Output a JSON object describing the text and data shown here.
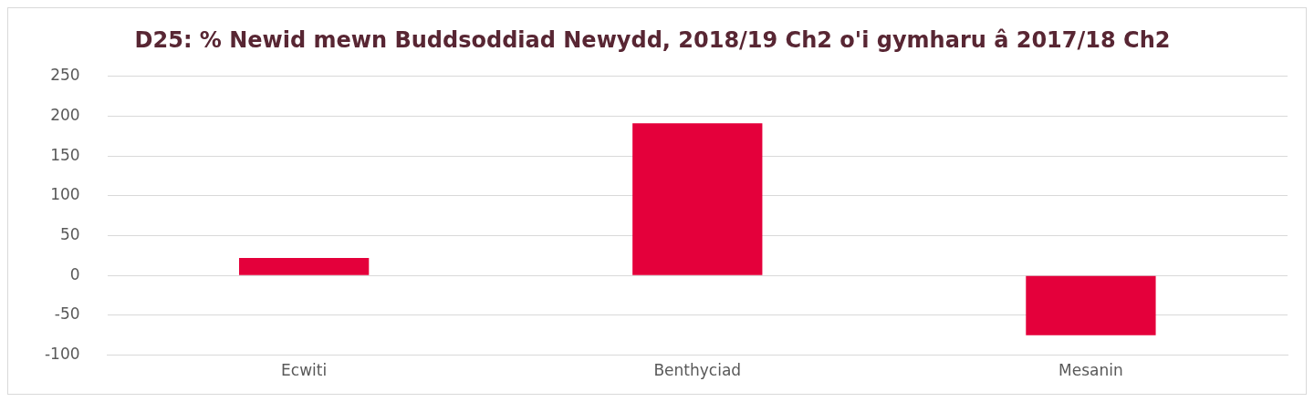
{
  "chart_data": {
    "type": "bar",
    "title": "D25: % Newid mewn Buddsoddiad Newydd, 2018/19 Ch2 o'i gymharu â 2017/18 Ch2",
    "categories": [
      "Ecwiti",
      "Benthyciad",
      "Mesanin"
    ],
    "values": [
      22,
      191,
      -75
    ],
    "color": "#e4003b",
    "ylim": [
      -100,
      250
    ],
    "yticks": [
      -100,
      -50,
      0,
      50,
      100,
      150,
      200,
      250
    ],
    "grid": "y"
  }
}
